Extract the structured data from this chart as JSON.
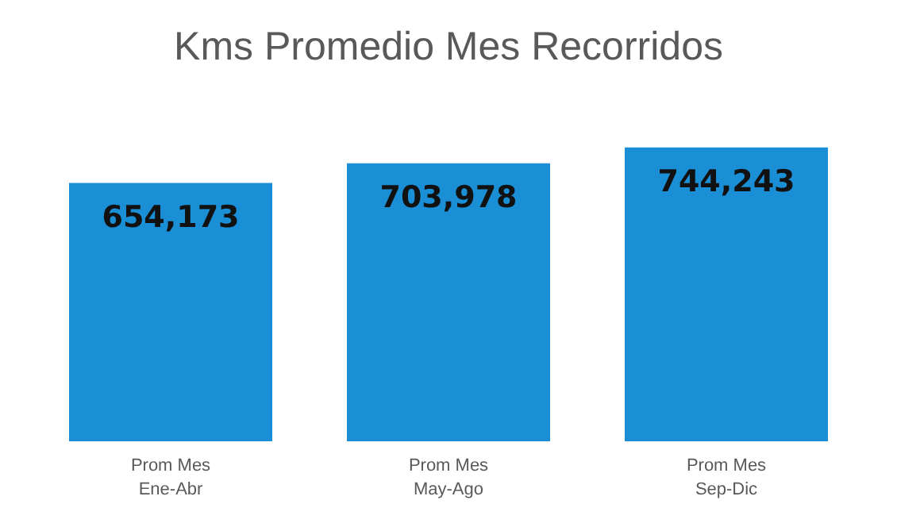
{
  "chart_data": {
    "type": "bar",
    "title": "Kms Promedio Mes Recorridos",
    "categories": [
      "Prom Mes\nEne-Abr",
      "Prom Mes\nMay-Ago",
      "Prom Mes\nSep-Dic"
    ],
    "values": [
      654173,
      703978,
      744243
    ],
    "value_labels": [
      "654,173",
      "703,978",
      "744,243"
    ],
    "color": "#1b8fd6",
    "tick_labels": "x"
  }
}
